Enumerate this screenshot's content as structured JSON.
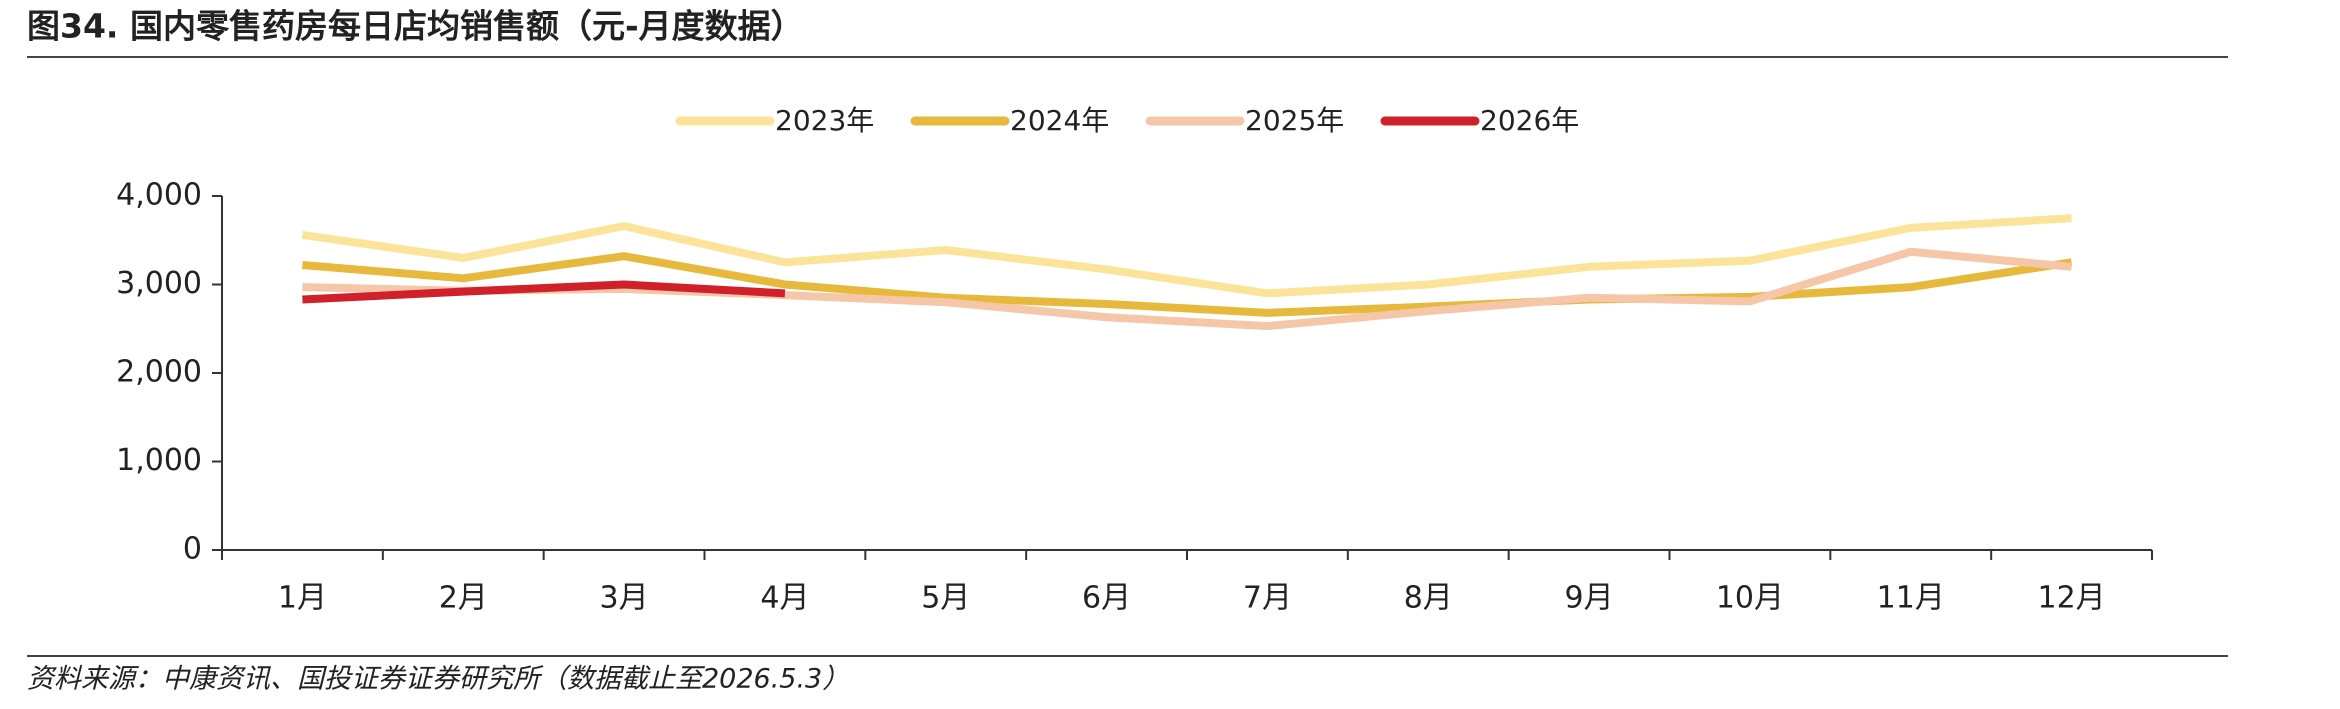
{
  "chart_data": {
    "type": "line",
    "title": "图34. 国内零售药房每日店均销售额（元-月度数据）",
    "source": "资料来源：中康资讯、国投证券证券研究所（数据截止至2026.5.3）",
    "categories": [
      "1月",
      "2月",
      "3月",
      "4月",
      "5月",
      "6月",
      "7月",
      "8月",
      "9月",
      "10月",
      "11月",
      "12月"
    ],
    "series": [
      {
        "name": "2023年",
        "color": "#fbe49a",
        "values": [
          3560,
          3300,
          3660,
          3250,
          3390,
          3170,
          2900,
          3000,
          3200,
          3270,
          3640,
          3750
        ]
      },
      {
        "name": "2024年",
        "color": "#e6b83c",
        "values": [
          3220,
          3070,
          3320,
          3000,
          2850,
          2780,
          2680,
          2750,
          2830,
          2860,
          2970,
          3250
        ]
      },
      {
        "name": "2025年",
        "color": "#f5c6a8",
        "values": [
          2970,
          2930,
          2950,
          2880,
          2800,
          2630,
          2530,
          2700,
          2850,
          2810,
          3370,
          3200
        ]
      },
      {
        "name": "2026年",
        "color": "#d0202a",
        "values": [
          2830,
          2920,
          3000,
          2900,
          null,
          null,
          null,
          null,
          null,
          null,
          null,
          null
        ]
      }
    ],
    "ylim": [
      0,
      4000
    ],
    "yticks": [
      0,
      {
        "value": 1000,
        "label": "1,000"
      },
      {
        "value": 2000,
        "label": "2,000"
      },
      {
        "value": 3000,
        "label": "3,000"
      },
      {
        "value": 4000,
        "label": "4,000"
      }
    ],
    "legend": "top"
  }
}
